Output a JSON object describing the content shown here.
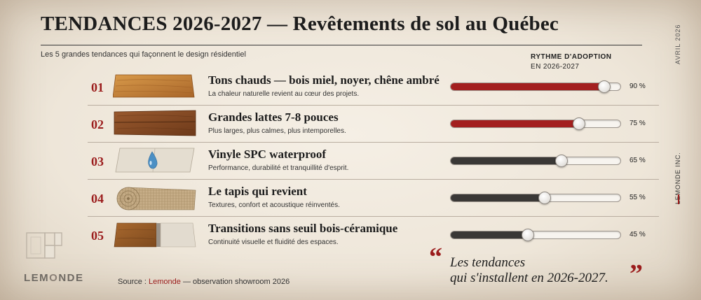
{
  "header": {
    "title": "TENDANCES 2026-2027 — Revêtements de sol au Québec",
    "subtitle": "Les 5 grandes tendances qui façonnent le design résidentiel",
    "adoption_title": "RYTHME D'ADOPTION",
    "adoption_sub": "EN 2026-2027"
  },
  "trends": [
    {
      "num": "01",
      "title": "Tons chauds — bois miel, noyer, chêne ambré",
      "desc": "La chaleur naturelle revient au cœur des projets.",
      "value": 90,
      "label": "90 %",
      "bar_color": "#a31f1f",
      "icon": "honey-wood-plank-icon"
    },
    {
      "num": "02",
      "title": "Grandes lattes 7-8 pouces",
      "desc": "Plus larges, plus calmes, plus intemporelles.",
      "value": 75,
      "label": "75 %",
      "bar_color": "#a31f1f",
      "icon": "wide-plank-icon"
    },
    {
      "num": "03",
      "title": "Vinyle SPC waterproof",
      "desc": "Performance, durabilité et tranquillité d'esprit.",
      "value": 65,
      "label": "65 %",
      "bar_color": "#3a3836",
      "icon": "stone-tile-water-drop-icon"
    },
    {
      "num": "04",
      "title": "Le tapis qui revient",
      "desc": "Textures, confort et acoustique réinventés.",
      "value": 55,
      "label": "55 %",
      "bar_color": "#3a3836",
      "icon": "carpet-roll-icon"
    },
    {
      "num": "05",
      "title": "Transitions sans seuil bois-céramique",
      "desc": "Continuité visuelle et fluidité des espaces.",
      "value": 45,
      "label": "45 %",
      "bar_color": "#3a3836",
      "icon": "wood-to-tile-transition-icon"
    }
  ],
  "footer": {
    "logo_text_a": "LEM",
    "logo_text_b": "O",
    "logo_text_c": "NDE",
    "source_prefix": "Source : ",
    "source_brand": "Lemonde",
    "source_suffix": " — observation showroom 2026",
    "quote_open": "“",
    "quote_line1": "Les tendances",
    "quote_line2": "qui s'installent en 2026-2027.",
    "quote_close": "”"
  },
  "side": {
    "date": "AVRIL 2026",
    "brand": "LEMONDE INC."
  },
  "colors": {
    "accent_red": "#9b1c1c",
    "bar_red": "#a31f1f",
    "bar_dark": "#3a3836"
  }
}
